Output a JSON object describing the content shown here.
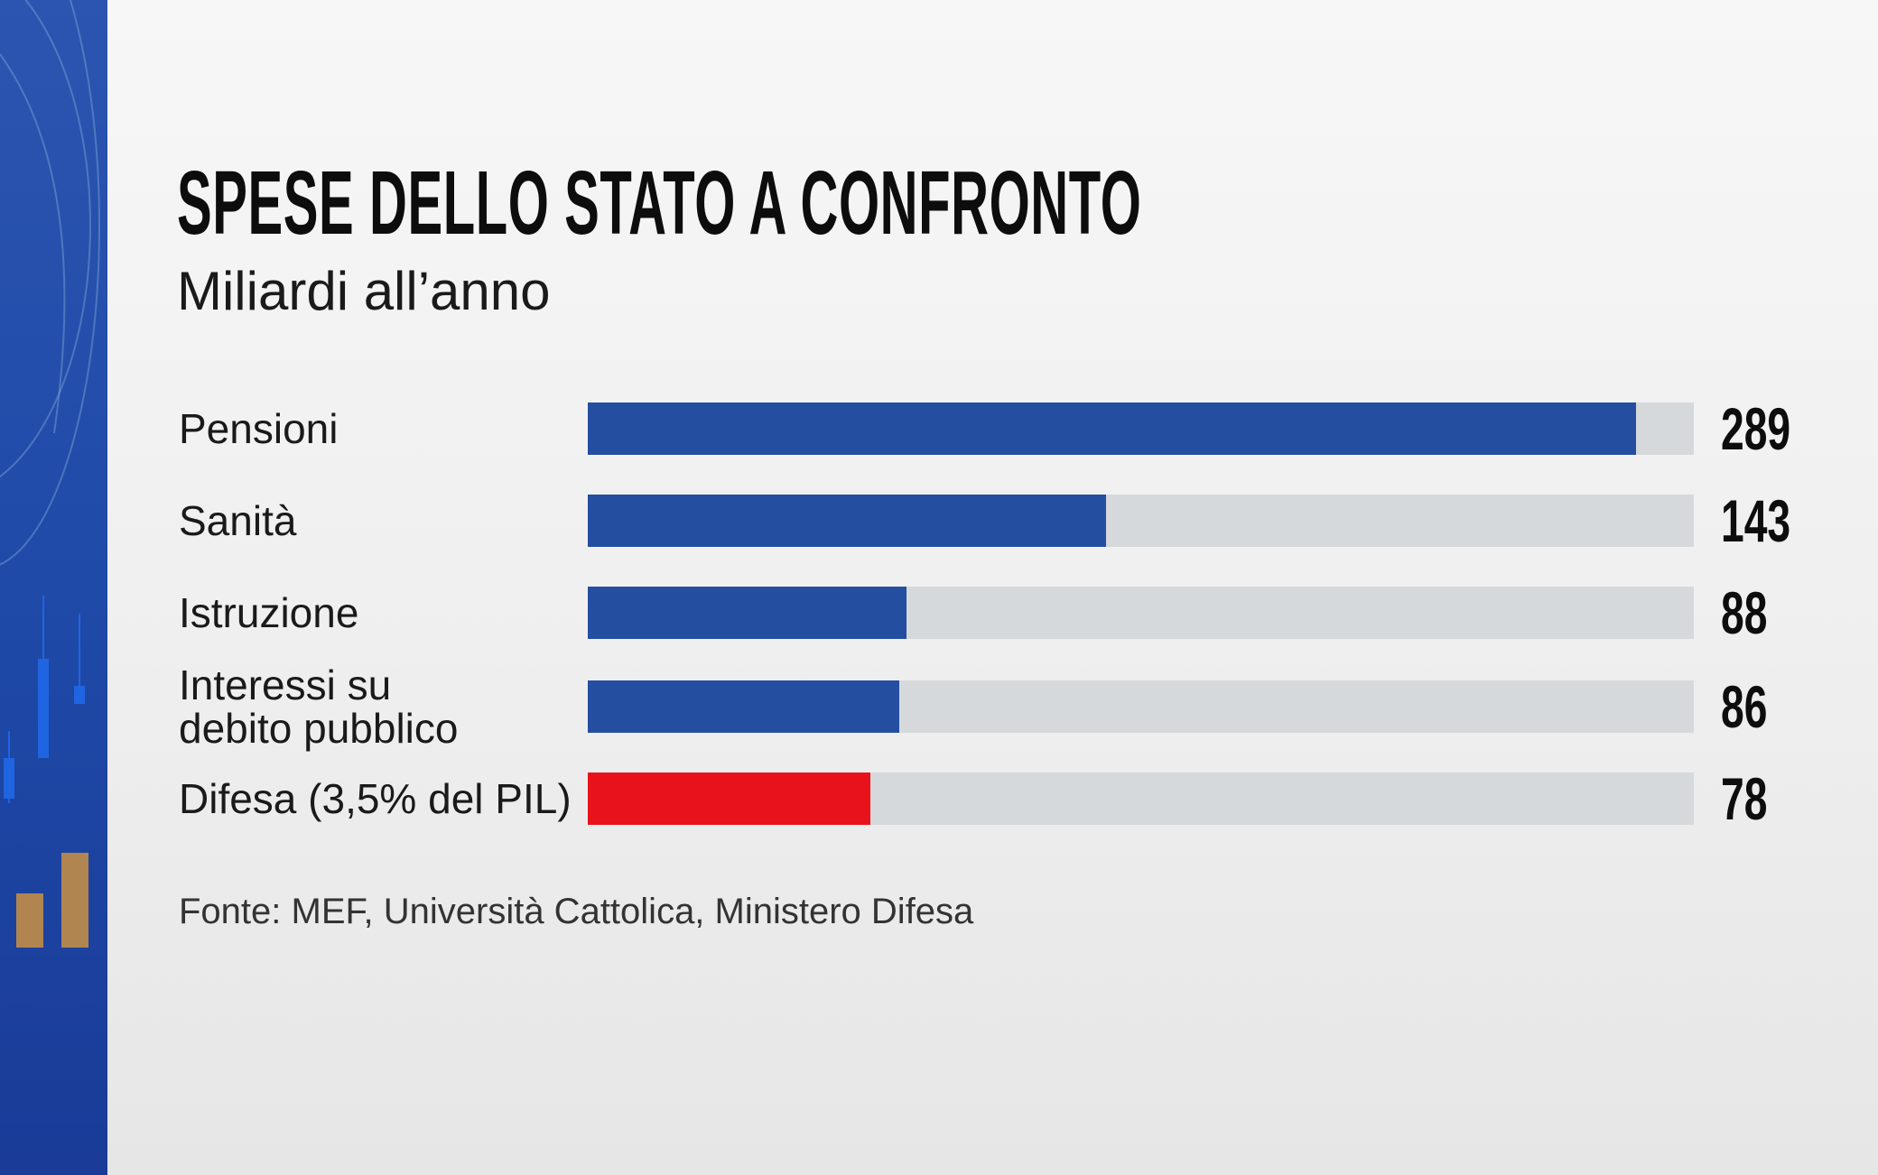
{
  "chart_data": {
    "type": "bar",
    "orientation": "horizontal",
    "title": "SPESE DELLO STATO A CONFRONTO",
    "subtitle": "Miliardi all’anno",
    "categories": [
      "Pensioni",
      "Sanità",
      "Istruzione",
      "Interessi su debito pubblico",
      "Difesa (3,5% del PIL)"
    ],
    "category_lines": [
      [
        "Pensioni"
      ],
      [
        "Sanità"
      ],
      [
        "Istruzione"
      ],
      [
        "Interessi su",
        "debito pubblico"
      ],
      [
        "Difesa (3,5% del PIL)"
      ]
    ],
    "values": [
      289,
      143,
      88,
      86,
      78
    ],
    "value_labels": [
      "289",
      "143",
      "88",
      "86",
      "78"
    ],
    "colors": [
      "#244ea0",
      "#244ea0",
      "#244ea0",
      "#244ea0",
      "#e8131a"
    ],
    "track_color": "#d6d9db",
    "xlim": [
      0,
      305
    ],
    "grid": false,
    "source": "Fonte: MEF, Università Cattolica, Ministero Difesa"
  }
}
